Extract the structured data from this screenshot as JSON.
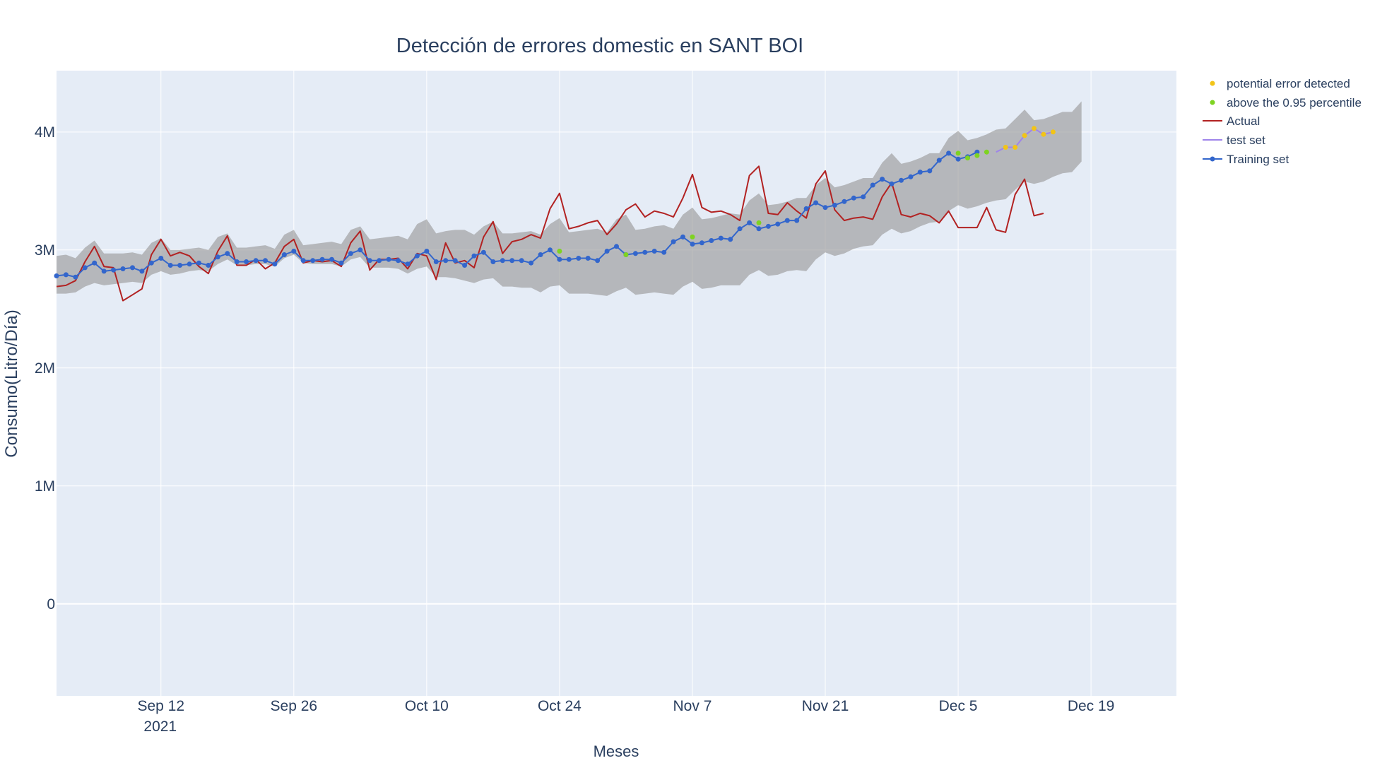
{
  "chart_data": {
    "type": "line",
    "title": "Detección de errores domestic en SANT BOI",
    "xlabel": "Meses",
    "ylabel": "Consumo(Litro/Día)",
    "x_range": [
      "2021-09-01",
      "2021-12-28"
    ],
    "ylim": [
      -780000,
      4520000
    ],
    "x_ticks": [
      {
        "date": "2021-09-12",
        "label": "Sep 12",
        "sublabel": "2021"
      },
      {
        "date": "2021-09-26",
        "label": "Sep 26"
      },
      {
        "date": "2021-10-10",
        "label": "Oct 10"
      },
      {
        "date": "2021-10-24",
        "label": "Oct 24"
      },
      {
        "date": "2021-11-07",
        "label": "Nov 7"
      },
      {
        "date": "2021-11-21",
        "label": "Nov 21"
      },
      {
        "date": "2021-12-05",
        "label": "Dec 5"
      },
      {
        "date": "2021-12-19",
        "label": "Dec 19"
      }
    ],
    "y_ticks": [
      {
        "value": 0,
        "label": "0"
      },
      {
        "value": 1000000,
        "label": "1M"
      },
      {
        "value": 2000000,
        "label": "2M"
      },
      {
        "value": 3000000,
        "label": "3M"
      },
      {
        "value": 4000000,
        "label": "4M"
      }
    ],
    "grid": true,
    "legend_position": "top-right outside",
    "start_date": "2021-09-01",
    "series": [
      {
        "name": "Training set",
        "color": "#3366cc",
        "mode": "lines+markers",
        "start_date": "2021-09-01",
        "values": [
          2.78,
          2.79,
          2.77,
          2.85,
          2.89,
          2.82,
          2.83,
          2.84,
          2.85,
          2.82,
          2.89,
          2.93,
          2.87,
          2.87,
          2.88,
          2.89,
          2.87,
          2.94,
          2.97,
          2.9,
          2.9,
          2.91,
          2.91,
          2.88,
          2.96,
          2.99,
          2.91,
          2.91,
          2.92,
          2.92,
          2.89,
          2.97,
          3.0,
          2.91,
          2.91,
          2.92,
          2.91,
          2.88,
          2.95,
          2.99,
          2.9,
          2.91,
          2.91,
          2.87,
          2.95,
          2.98,
          2.9,
          2.91,
          2.91,
          2.91,
          2.89,
          2.96,
          3.0,
          2.92,
          2.92,
          2.93,
          2.93,
          2.91,
          2.99,
          3.03,
          2.96,
          2.97,
          2.98,
          2.99,
          2.98,
          3.07,
          3.11,
          3.05,
          3.06,
          3.08,
          3.1,
          3.09,
          3.18,
          3.23,
          3.18,
          3.2,
          3.22,
          3.25,
          3.25,
          3.35,
          3.4,
          3.36,
          3.38,
          3.41,
          3.44,
          3.45,
          3.55,
          3.6,
          3.56,
          3.59,
          3.62,
          3.66,
          3.67,
          3.76,
          3.82,
          3.77,
          3.79,
          3.83
        ]
      },
      {
        "name": "test set",
        "color": "#9f84ea",
        "mode": "lines",
        "start_date": "2021-12-09",
        "values": [
          3.83,
          3.87,
          3.87,
          3.97,
          4.03,
          3.98,
          4.0
        ]
      },
      {
        "name": "Actual",
        "color": "#b22222",
        "mode": "lines",
        "start_date": "2021-09-01",
        "values": [
          2.69,
          2.7,
          2.74,
          2.9,
          3.03,
          2.86,
          2.85,
          2.57,
          2.62,
          2.67,
          2.96,
          3.09,
          2.95,
          2.98,
          2.95,
          2.86,
          2.8,
          2.99,
          3.12,
          2.87,
          2.87,
          2.92,
          2.84,
          2.89,
          3.03,
          3.09,
          2.89,
          2.91,
          2.9,
          2.91,
          2.86,
          3.06,
          3.16,
          2.83,
          2.92,
          2.92,
          2.93,
          2.84,
          2.97,
          2.95,
          2.75,
          3.06,
          2.89,
          2.91,
          2.85,
          3.11,
          3.24,
          2.97,
          3.07,
          3.09,
          3.13,
          3.1,
          3.35,
          3.48,
          3.18,
          3.2,
          3.23,
          3.25,
          3.13,
          3.22,
          3.34,
          3.39,
          3.28,
          3.33,
          3.31,
          3.28,
          3.44,
          3.64,
          3.36,
          3.32,
          3.33,
          3.3,
          3.25,
          3.63,
          3.71,
          3.31,
          3.3,
          3.4,
          3.33,
          3.27,
          3.56,
          3.67,
          3.34,
          3.25,
          3.27,
          3.28,
          3.26,
          3.45,
          3.57,
          3.3,
          3.28,
          3.31,
          3.29,
          3.23,
          3.33,
          3.19,
          3.19,
          3.19,
          3.36,
          3.17,
          3.15,
          3.47,
          3.6,
          3.29,
          3.31
        ]
      }
    ],
    "confidence_band": {
      "fill_color": "#9b9b9b",
      "start_date": "2021-09-01",
      "upper": [
        2.95,
        2.96,
        2.93,
        3.02,
        3.08,
        2.97,
        2.97,
        2.97,
        2.98,
        2.96,
        3.06,
        3.1,
        3.0,
        3.0,
        3.01,
        3.02,
        3.0,
        3.11,
        3.14,
        3.02,
        3.02,
        3.03,
        3.04,
        3.01,
        3.13,
        3.17,
        3.04,
        3.05,
        3.06,
        3.07,
        3.05,
        3.17,
        3.2,
        3.09,
        3.1,
        3.11,
        3.12,
        3.09,
        3.22,
        3.26,
        3.14,
        3.16,
        3.17,
        3.17,
        3.13,
        3.2,
        3.24,
        3.14,
        3.14,
        3.15,
        3.16,
        3.13,
        3.22,
        3.27,
        3.15,
        3.16,
        3.17,
        3.18,
        3.15,
        3.26,
        3.3,
        3.17,
        3.18,
        3.2,
        3.21,
        3.18,
        3.3,
        3.36,
        3.26,
        3.27,
        3.29,
        3.31,
        3.3,
        3.42,
        3.48,
        3.38,
        3.39,
        3.41,
        3.44,
        3.44,
        3.55,
        3.61,
        3.53,
        3.55,
        3.58,
        3.61,
        3.61,
        3.74,
        3.82,
        3.73,
        3.75,
        3.78,
        3.82,
        3.82,
        3.95,
        4.01,
        3.93,
        3.95,
        3.98,
        4.02,
        4.03,
        4.11,
        4.19,
        4.1,
        4.11,
        4.14,
        4.17,
        4.17,
        4.26
      ],
      "lower": [
        2.63,
        2.63,
        2.64,
        2.69,
        2.72,
        2.7,
        2.71,
        2.72,
        2.73,
        2.72,
        2.79,
        2.82,
        2.79,
        2.8,
        2.82,
        2.83,
        2.82,
        2.88,
        2.92,
        2.87,
        2.87,
        2.88,
        2.88,
        2.86,
        2.93,
        2.96,
        2.89,
        2.88,
        2.88,
        2.88,
        2.86,
        2.92,
        2.94,
        2.85,
        2.85,
        2.85,
        2.84,
        2.8,
        2.84,
        2.86,
        2.77,
        2.77,
        2.76,
        2.74,
        2.72,
        2.75,
        2.76,
        2.69,
        2.69,
        2.68,
        2.68,
        2.64,
        2.69,
        2.7,
        2.63,
        2.63,
        2.63,
        2.62,
        2.61,
        2.65,
        2.68,
        2.62,
        2.63,
        2.64,
        2.63,
        2.62,
        2.69,
        2.73,
        2.67,
        2.68,
        2.7,
        2.7,
        2.7,
        2.79,
        2.83,
        2.78,
        2.79,
        2.82,
        2.83,
        2.82,
        2.92,
        2.98,
        2.95,
        2.97,
        3.01,
        3.03,
        3.04,
        3.13,
        3.18,
        3.14,
        3.16,
        3.2,
        3.23,
        3.24,
        3.33,
        3.38,
        3.35,
        3.37,
        3.4,
        3.42,
        3.43,
        3.51,
        3.58,
        3.56,
        3.58,
        3.62,
        3.65,
        3.66,
        3.75
      ]
    },
    "markers": [
      {
        "name": "potential error detected",
        "color": "#f2c417",
        "points": [
          [
            "2021-12-10",
            3.87
          ],
          [
            "2021-12-11",
            3.87
          ],
          [
            "2021-12-12",
            3.97
          ],
          [
            "2021-12-13",
            4.03
          ],
          [
            "2021-12-14",
            3.98
          ],
          [
            "2021-12-15",
            4.0
          ]
        ]
      },
      {
        "name": "above the 0.95 percentile",
        "color": "#7ed321",
        "points": [
          [
            "2021-10-24",
            2.99
          ],
          [
            "2021-10-31",
            2.96
          ],
          [
            "2021-11-07",
            3.11
          ],
          [
            "2021-11-14",
            3.23
          ],
          [
            "2021-12-05",
            3.82
          ],
          [
            "2021-12-06",
            3.78
          ],
          [
            "2021-12-07",
            3.8
          ],
          [
            "2021-12-08",
            3.83
          ]
        ]
      }
    ],
    "y_value_unit": "M"
  },
  "legend": [
    {
      "label": "potential error detected",
      "kind": "marker",
      "color": "#f2c417"
    },
    {
      "label": "above the 0.95 percentile",
      "kind": "marker",
      "color": "#7ed321"
    },
    {
      "label": "Actual",
      "kind": "line",
      "color": "#b22222"
    },
    {
      "label": "test set",
      "kind": "line",
      "color": "#9f84ea"
    },
    {
      "label": "Training set",
      "kind": "line-marker",
      "color": "#3366cc"
    }
  ],
  "colors": {
    "plot_background": "#e5ecf6",
    "grid": "#ffffff",
    "text": "#2a3f5f"
  }
}
